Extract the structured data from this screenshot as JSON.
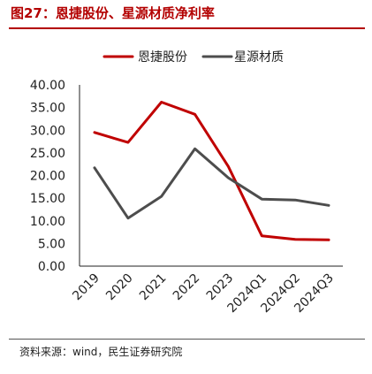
{
  "figure_title": "图27：恩捷股份、星源材质净利率",
  "source_note": "资料来源：wind，民生证券研究院",
  "chart_data": {
    "type": "line",
    "title": "",
    "xlabel": "",
    "ylabel": "",
    "categories": [
      "2019",
      "2020",
      "2021",
      "2022",
      "2023",
      "2024Q1",
      "2024Q2",
      "2024Q3"
    ],
    "series": [
      {
        "name": "恩捷股份",
        "color": "#c00000",
        "values": [
          29.5,
          27.3,
          36.2,
          33.5,
          22.0,
          6.7,
          5.9,
          5.8
        ]
      },
      {
        "name": "星源材质",
        "color": "#4d4d4d",
        "values": [
          21.7,
          10.6,
          15.4,
          25.9,
          19.5,
          14.8,
          14.6,
          13.4
        ]
      }
    ],
    "ylim": [
      0,
      40
    ],
    "yticks": [
      "0.00",
      "5.00",
      "10.00",
      "15.00",
      "20.00",
      "25.00",
      "30.00",
      "35.00",
      "40.00"
    ],
    "grid": false,
    "legend_position": "top"
  }
}
